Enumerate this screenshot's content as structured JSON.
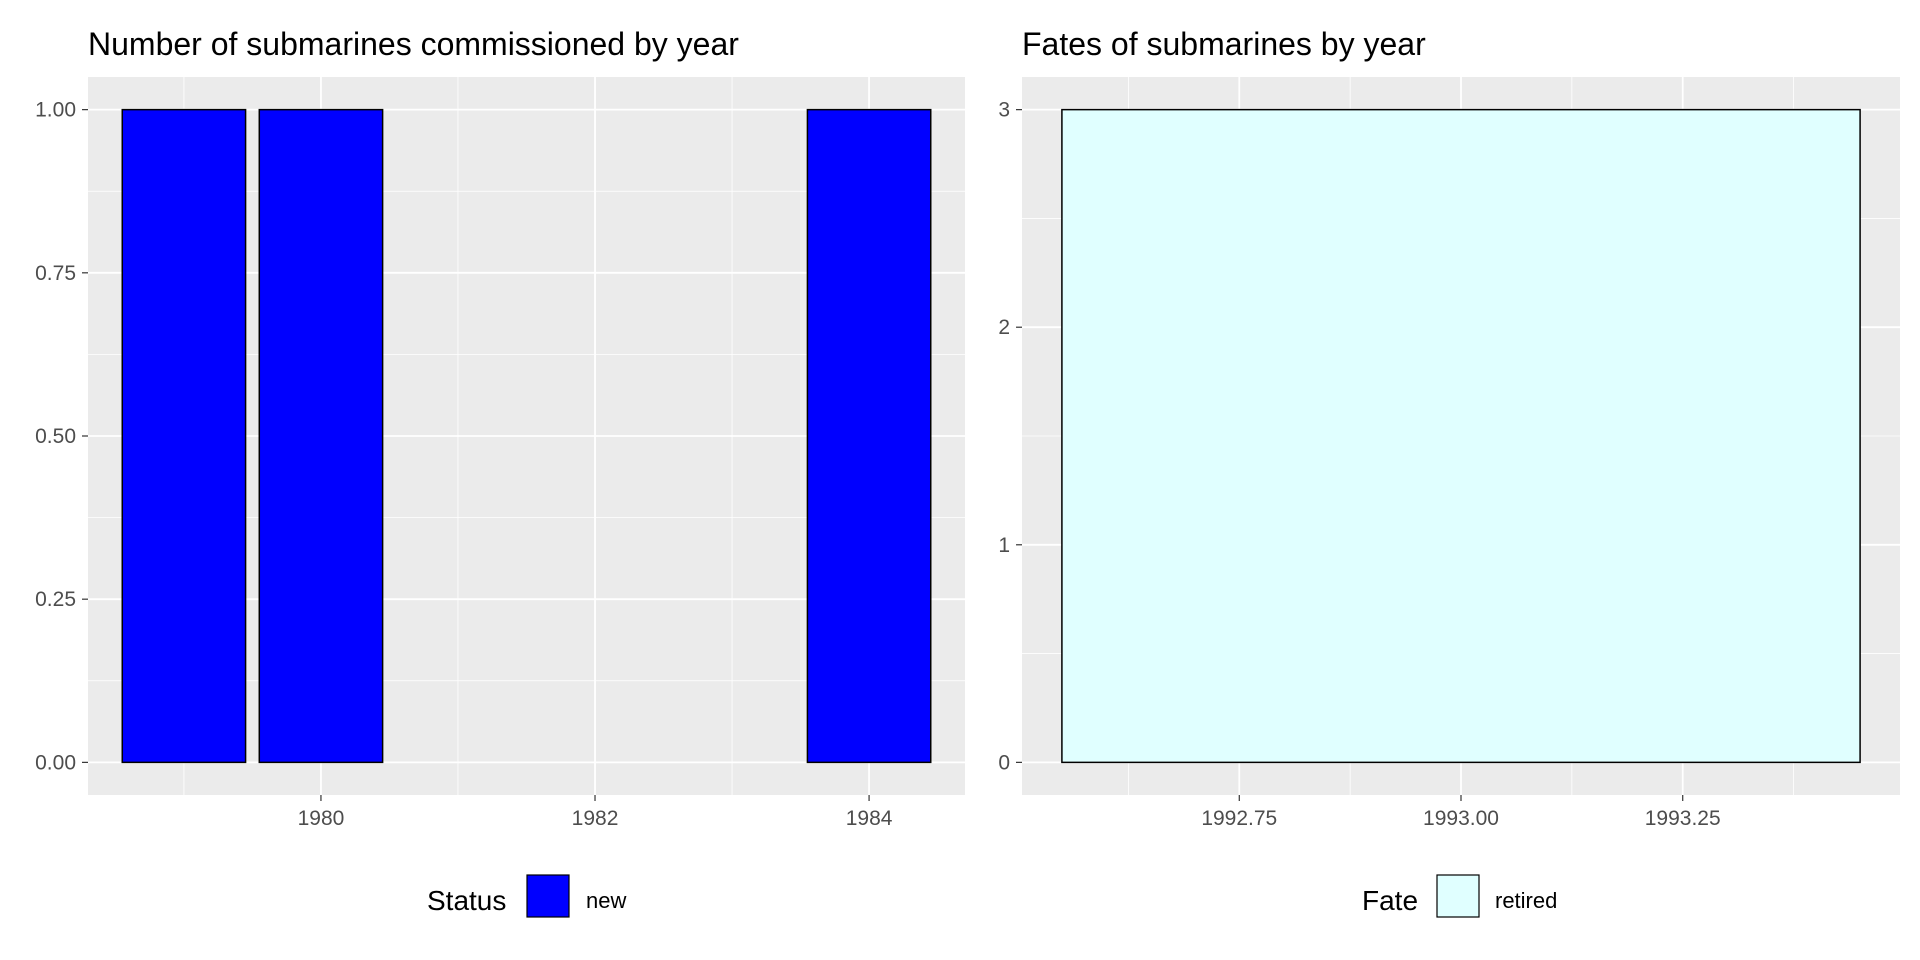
{
  "chart_data": [
    {
      "type": "bar",
      "title": "Number of submarines commissioned by year",
      "xlabel": "",
      "ylabel": "",
      "x": [
        1979,
        1980,
        1984
      ],
      "values": [
        1,
        1,
        1
      ],
      "xlim": [
        1978.3,
        1984.7
      ],
      "ylim": [
        -0.05,
        1.05
      ],
      "x_ticks": [
        1980,
        1982,
        1984
      ],
      "x_tick_labels": [
        "1980",
        "1982",
        "1984"
      ],
      "y_ticks": [
        0,
        0.25,
        0.5,
        0.75,
        1.0
      ],
      "y_tick_labels": [
        "0.00",
        "0.25",
        "0.50",
        "0.75",
        "1.00"
      ],
      "bar_width": 0.9,
      "grid": true,
      "legend": {
        "title": "Status",
        "position": "bottom",
        "entries": [
          {
            "label": "new",
            "color": "#0000FF"
          }
        ]
      },
      "fill_color": "#0000FF",
      "outline_color": "#000000"
    },
    {
      "type": "bar",
      "title": "Fates of submarines by year",
      "xlabel": "",
      "ylabel": "",
      "x": [
        1993
      ],
      "values": [
        3
      ],
      "xlim": [
        1992.505,
        1993.495
      ],
      "ylim": [
        -0.15,
        3.15
      ],
      "x_ticks": [
        1992.75,
        1993.0,
        1993.25
      ],
      "x_tick_labels": [
        "1992.75",
        "1993.00",
        "1993.25"
      ],
      "y_ticks": [
        0,
        1,
        2,
        3
      ],
      "y_tick_labels": [
        "0",
        "1",
        "2",
        "3"
      ],
      "bar_width": 0.9,
      "grid": true,
      "legend": {
        "title": "Fate",
        "position": "bottom",
        "entries": [
          {
            "label": "retired",
            "color": "#E0FFFF"
          }
        ]
      },
      "fill_color": "#E0FFFF",
      "outline_color": "#000000"
    }
  ],
  "style": {
    "panel_background": "#EBEBEB",
    "grid_color": "#FFFFFF",
    "tick_color": "#333333",
    "tick_label_color": "#4D4D4D"
  }
}
